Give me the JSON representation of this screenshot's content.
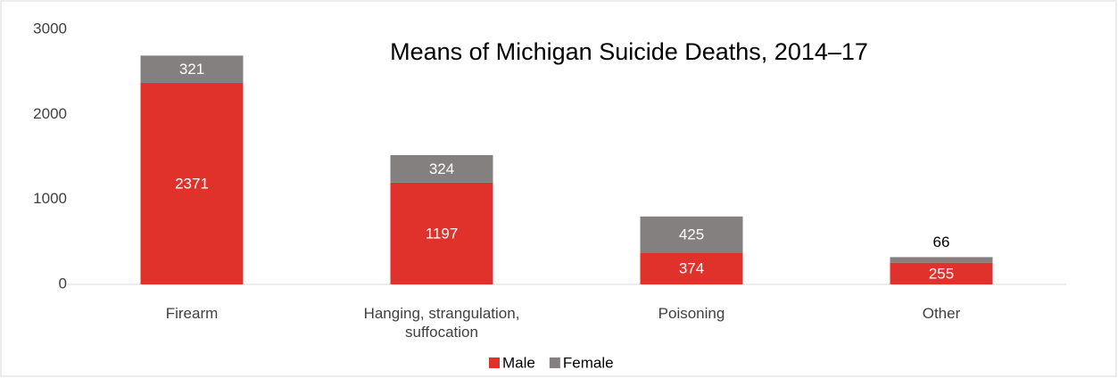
{
  "chart_data": {
    "type": "stacked_bar",
    "title": "Means of Michigan Suicide Deaths, 2014–17",
    "categories": [
      "Firearm",
      "Hanging, strangulation, suffocation",
      "Poisoning",
      "Other"
    ],
    "series": [
      {
        "name": "Male",
        "color": "#e0312b",
        "values": [
          2371,
          1197,
          374,
          255
        ]
      },
      {
        "name": "Female",
        "color": "#858080",
        "values": [
          321,
          324,
          425,
          66
        ]
      }
    ],
    "ylim": [
      0,
      3000
    ],
    "yticks": [
      0,
      1000,
      2000,
      3000
    ],
    "grid": false,
    "legend": "bottom"
  }
}
